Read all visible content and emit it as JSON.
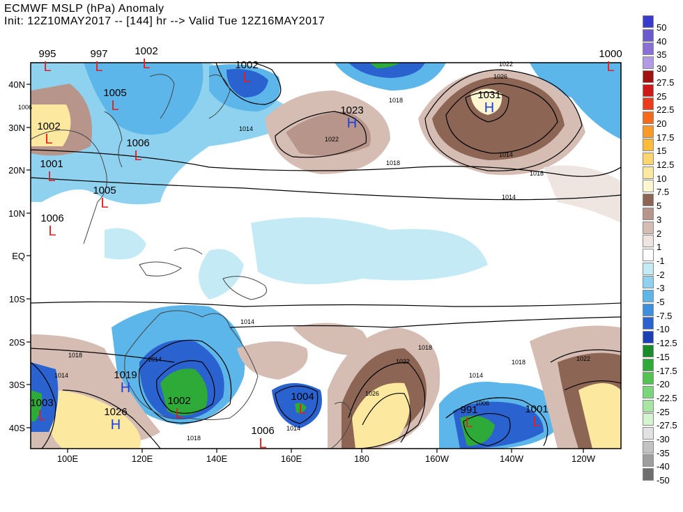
{
  "title": {
    "line1": "ECMWF MSLP (hPa) Anomaly",
    "line2": "Init: 12Z10MAY2017 -- [144] hr --> Valid Tue 12Z16MAY2017"
  },
  "axes": {
    "lat_labels": [
      "40N",
      "30N",
      "20N",
      "10N",
      "EQ",
      "10S",
      "20S",
      "30S",
      "40S"
    ],
    "lon_labels": [
      "100E",
      "120E",
      "140E",
      "160E",
      "180",
      "160W",
      "140W",
      "120W"
    ]
  },
  "pressure_centers": [
    {
      "type": "L",
      "value": "995"
    },
    {
      "type": "L",
      "value": "997"
    },
    {
      "type": "L",
      "value": "1002"
    },
    {
      "type": "L",
      "value": "1002"
    },
    {
      "type": "L",
      "value": "1000"
    },
    {
      "type": "L",
      "value": "1005"
    },
    {
      "type": "L",
      "value": "1002"
    },
    {
      "type": "L",
      "value": "1006"
    },
    {
      "type": "L",
      "value": "1001"
    },
    {
      "type": "L",
      "value": "1005"
    },
    {
      "type": "L",
      "value": "1006"
    },
    {
      "type": "H",
      "value": "1023"
    },
    {
      "type": "H",
      "value": "1031"
    },
    {
      "type": "H",
      "value": "1019"
    },
    {
      "type": "H",
      "value": "1026"
    },
    {
      "type": "L",
      "value": "1002"
    },
    {
      "type": "L",
      "value": "1004"
    },
    {
      "type": "L",
      "value": "1006"
    },
    {
      "type": "L",
      "value": "991"
    },
    {
      "type": "L",
      "value": "1001"
    },
    {
      "type": "L",
      "value": "1003"
    }
  ],
  "isobar_labels": [
    "1022",
    "1026",
    "1018",
    "1014",
    "1022",
    "1018",
    "1014",
    "1018",
    "1014",
    "1014",
    "1018",
    "1018",
    "1022",
    "1022",
    "1026",
    "1014",
    "1006",
    "1014",
    "1018",
    "1014",
    "1006",
    "1018",
    "1014"
  ],
  "legend": {
    "items": [
      {
        "label": "50",
        "color": "#3a3ad0"
      },
      {
        "label": "40",
        "color": "#6a5acd"
      },
      {
        "label": "35",
        "color": "#8a6fd8"
      },
      {
        "label": "30",
        "color": "#b29be6"
      },
      {
        "label": "27.5",
        "color": "#a01010"
      },
      {
        "label": "25",
        "color": "#d01818"
      },
      {
        "label": "22.5",
        "color": "#ee3a1a"
      },
      {
        "label": "20",
        "color": "#f86a1a"
      },
      {
        "label": "17.5",
        "color": "#fc9a28"
      },
      {
        "label": "15",
        "color": "#fdbb3a"
      },
      {
        "label": "12.5",
        "color": "#fdd570"
      },
      {
        "label": "10",
        "color": "#fde8a0"
      },
      {
        "label": "7.5",
        "color": "#fdf6d0"
      },
      {
        "label": "5",
        "color": "#8c6555"
      },
      {
        "label": "3",
        "color": "#b8958a"
      },
      {
        "label": "2",
        "color": "#d6bdb4"
      },
      {
        "label": "1",
        "color": "#eee4e0"
      },
      {
        "label": "-1",
        "color": "#ffffff"
      },
      {
        "label": "-2",
        "color": "#c4eaf6"
      },
      {
        "label": "-3",
        "color": "#8ed2f0"
      },
      {
        "label": "-5",
        "color": "#5cb6ea"
      },
      {
        "label": "-7.5",
        "color": "#3d8fe0"
      },
      {
        "label": "-10",
        "color": "#2a62d0"
      },
      {
        "label": "-12.5",
        "color": "#1c3fb8"
      },
      {
        "label": "-15",
        "color": "#188c28"
      },
      {
        "label": "-17.5",
        "color": "#2eaa38"
      },
      {
        "label": "-20",
        "color": "#52c452"
      },
      {
        "label": "-22.5",
        "color": "#7ad67a"
      },
      {
        "label": "-25",
        "color": "#a6e6a2"
      },
      {
        "label": "-27.5",
        "color": "#d4f4d0"
      },
      {
        "label": "-30",
        "color": "#e2e2e2"
      },
      {
        "label": "-35",
        "color": "#c2c2c2"
      },
      {
        "label": "-40",
        "color": "#9e9e9e"
      },
      {
        "label": "-50",
        "color": "#6e6e6e"
      }
    ]
  },
  "colors": {
    "low_marker": "#e02020",
    "high_marker": "#1a40e0"
  }
}
